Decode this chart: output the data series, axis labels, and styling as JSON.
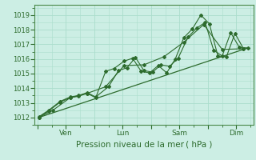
{
  "bg_color": "#cceee4",
  "grid_color": "#aaddcc",
  "line_color": "#2d6b2d",
  "marker_color": "#2d6b2d",
  "xlabel": "Pression niveau de la mer ( hPa )",
  "ylim": [
    1011.5,
    1019.7
  ],
  "yticks": [
    1012,
    1013,
    1014,
    1015,
    1016,
    1017,
    1018,
    1019
  ],
  "xtick_labels": [
    "",
    "Ven",
    "",
    "Lun",
    "",
    "Sam",
    "",
    "Dim"
  ],
  "xtick_positions": [
    0,
    1,
    2,
    3,
    4,
    5,
    6,
    7
  ],
  "xlim": [
    -0.1,
    7.6
  ],
  "series1_x": [
    0.05,
    0.4,
    0.8,
    1.15,
    1.45,
    1.75,
    2.05,
    2.4,
    2.7,
    3.05,
    3.35,
    3.65,
    3.95,
    4.25,
    4.55,
    4.85,
    5.15,
    5.45,
    5.75,
    6.05,
    6.35,
    6.65,
    6.95,
    7.25
  ],
  "series1_y": [
    1012.0,
    1012.45,
    1013.05,
    1013.35,
    1013.45,
    1013.65,
    1013.35,
    1015.15,
    1015.35,
    1015.85,
    1016.05,
    1015.15,
    1015.05,
    1015.55,
    1015.05,
    1016.0,
    1017.45,
    1018.05,
    1019.0,
    1018.4,
    1016.2,
    1016.15,
    1017.75,
    1016.7
  ],
  "series2_x": [
    0.05,
    0.4,
    0.8,
    1.15,
    1.45,
    1.75,
    2.05,
    2.5,
    2.85,
    3.15,
    3.45,
    3.75,
    4.05,
    4.35,
    4.65,
    4.95,
    5.3,
    5.6,
    5.9,
    6.2,
    6.5,
    6.8,
    7.1,
    7.4
  ],
  "series2_y": [
    1012.05,
    1012.5,
    1013.1,
    1013.4,
    1013.5,
    1013.7,
    1013.4,
    1014.1,
    1015.2,
    1015.4,
    1016.1,
    1015.2,
    1015.1,
    1015.6,
    1015.5,
    1016.05,
    1017.5,
    1018.1,
    1018.5,
    1016.6,
    1016.2,
    1017.8,
    1016.8,
    1016.75
  ],
  "trend_x": [
    0.05,
    7.4
  ],
  "trend_y": [
    1012.0,
    1016.75
  ],
  "series3_x": [
    0.05,
    0.55,
    1.15,
    1.75,
    2.4,
    3.05,
    3.75,
    4.45,
    5.15,
    5.85,
    6.5,
    7.25
  ],
  "series3_y": [
    1012.0,
    1012.5,
    1013.35,
    1013.65,
    1014.1,
    1015.55,
    1015.6,
    1016.15,
    1017.15,
    1018.35,
    1016.65,
    1016.7
  ]
}
